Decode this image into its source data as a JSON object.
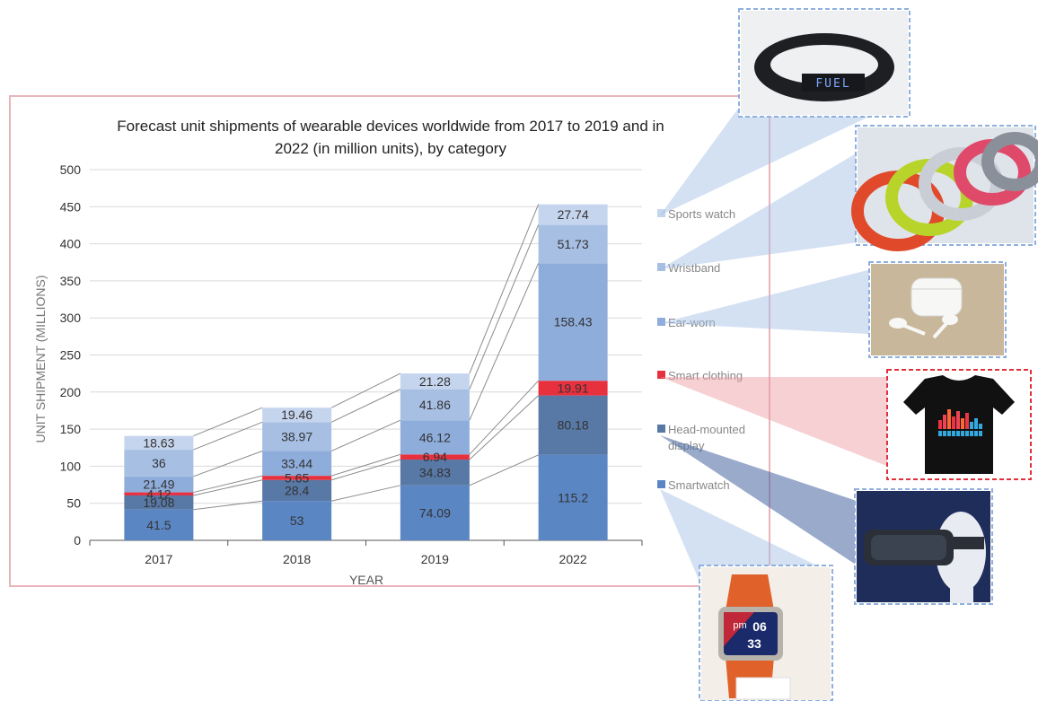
{
  "chart_data": {
    "type": "bar",
    "stacked": true,
    "title_lines": [
      "Forecast unit shipments of wearable devices worldwide from 2017 to 2019 and in",
      "2022 (in million units), by category"
    ],
    "xlabel": "YEAR",
    "ylabel": "UNIT SHIPMENT (MILLIONS)",
    "categories": [
      "2017",
      "2018",
      "2019",
      "2022"
    ],
    "ylim": [
      0,
      500
    ],
    "yticks": [
      0,
      50,
      100,
      150,
      200,
      250,
      300,
      350,
      400,
      450,
      500
    ],
    "grid": true,
    "legend_position": "right",
    "series": [
      {
        "name": "Smartwatch",
        "color": "#5b86c4",
        "values": [
          41.5,
          53,
          74.09,
          115.2
        ],
        "labels": [
          "41.5",
          "53",
          "74.09",
          "115.2"
        ]
      },
      {
        "name": "Head-mounted display",
        "color": "#5878a6",
        "values": [
          19.08,
          28.4,
          34.83,
          80.18
        ],
        "labels": [
          "19.08",
          "28.4",
          "34.83",
          "80.18"
        ]
      },
      {
        "name": "Smart clothing",
        "color": "#e8313f",
        "values": [
          4.12,
          5.65,
          6.94,
          19.91
        ],
        "labels": [
          "4.12",
          "5.65",
          "6.94",
          "19.91"
        ]
      },
      {
        "name": "Ear-worn",
        "color": "#8eaddb",
        "values": [
          21.49,
          33.44,
          46.12,
          158.43
        ],
        "labels": [
          "21.49",
          "33.44",
          "46.12",
          "158.43"
        ]
      },
      {
        "name": "Wristband",
        "color": "#a6bfe3",
        "values": [
          36,
          38.97,
          41.86,
          51.73
        ],
        "labels": [
          "36",
          "38.97",
          "41.86",
          "51.73"
        ]
      },
      {
        "name": "Sports watch",
        "color": "#c6d5ee",
        "values": [
          18.63,
          19.46,
          21.28,
          27.74
        ],
        "labels": [
          "18.63",
          "19.46",
          "21.28",
          "27.74"
        ]
      }
    ],
    "legend_entries": [
      "Sports watch",
      "Wristband",
      "Ear-worn",
      "Smart clothing",
      "Head-mounted display",
      "Smartwatch"
    ]
  },
  "photos": [
    {
      "name": "sports-watch-photo",
      "icon": "fitness-band-icon",
      "text": "FUEL"
    },
    {
      "name": "wristband-photo",
      "icon": "wristbands-icon"
    },
    {
      "name": "ear-worn-photo",
      "icon": "earbuds-icon"
    },
    {
      "name": "smart-clothing-photo",
      "icon": "led-tshirt-icon"
    },
    {
      "name": "head-mounted-display-photo",
      "icon": "vr-headset-icon"
    },
    {
      "name": "smartwatch-photo",
      "icon": "smartwatch-icon",
      "text_lines": [
        "06",
        "33"
      ],
      "badge": "pm"
    }
  ]
}
